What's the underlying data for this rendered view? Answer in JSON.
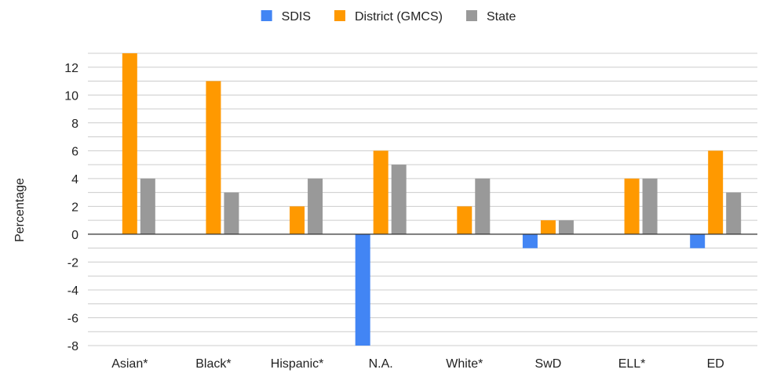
{
  "chart_data": {
    "type": "bar",
    "title": "",
    "xlabel": "",
    "ylabel": "Percentage",
    "categories": [
      "Asian*",
      "Black*",
      "Hispanic*",
      "N.A.",
      "White*",
      "SwD",
      "ELL*",
      "ED"
    ],
    "series": [
      {
        "name": "SDIS",
        "color": "#4285f4",
        "values": [
          0,
          0,
          0,
          -8,
          0,
          -1,
          0,
          -1
        ]
      },
      {
        "name": "District (GMCS)",
        "color": "#ff9900",
        "values": [
          13,
          11,
          2,
          6,
          2,
          1,
          4,
          6
        ]
      },
      {
        "name": "State",
        "color": "#999999",
        "values": [
          4,
          3,
          4,
          5,
          4,
          1,
          4,
          3
        ]
      }
    ],
    "ylim": [
      -8,
      13
    ],
    "yticks": [
      12,
      10,
      8,
      6,
      4,
      2,
      0,
      -2,
      -4,
      -6,
      -8
    ],
    "grid": true,
    "legend_position": "top-center"
  }
}
